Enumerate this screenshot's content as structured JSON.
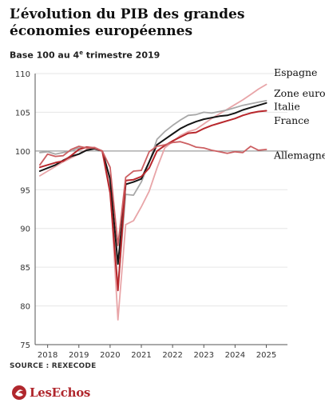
{
  "header": {
    "title": "L’évolution du PIB des grandes économies européennes",
    "subtitle_main": "Base 100 au 4",
    "subtitle_sup": "e",
    "subtitle_rest": " trimestre 2019"
  },
  "footer": {
    "source": "SOURCE : REXECODE",
    "brand": "LesEchos"
  },
  "chart_data": {
    "type": "line",
    "title": "",
    "xlabel": "",
    "ylabel": "",
    "ylim": [
      75,
      110
    ],
    "yticks": [
      75,
      80,
      85,
      90,
      95,
      100,
      105,
      110
    ],
    "xlim": [
      2017.6,
      2025.55
    ],
    "xticks": [
      {
        "label": "2018",
        "value": 2018.0
      },
      {
        "label": "2019",
        "value": 2019.0
      },
      {
        "label": "2020",
        "value": 2020.0
      },
      {
        "label": "2021",
        "value": 2021.0
      },
      {
        "label": "2022",
        "value": 2022.0
      },
      {
        "label": "2023",
        "value": 2023.0
      },
      {
        "label": "2024",
        "value": 2024.0
      },
      {
        "label": "2025",
        "value": 2025.0
      }
    ],
    "baseline": 100,
    "x": [
      2017.75,
      2018.0,
      2018.25,
      2018.5,
      2018.75,
      2019.0,
      2019.25,
      2019.5,
      2019.75,
      2020.0,
      2020.25,
      2020.5,
      2020.75,
      2021.0,
      2021.25,
      2021.5,
      2021.75,
      2022.0,
      2022.25,
      2022.5,
      2022.75,
      2023.0,
      2023.25,
      2023.5,
      2023.75,
      2024.0,
      2024.25,
      2024.5,
      2024.75,
      2025.0
    ],
    "series": [
      {
        "name": "Espagne",
        "color": "#e8a5a8",
        "width": 1.8,
        "values": [
          96.8,
          97.4,
          98.0,
          98.6,
          99.1,
          99.6,
          100.2,
          100.5,
          100.0,
          95.5,
          78.2,
          90.5,
          91.0,
          92.8,
          94.8,
          97.8,
          100.4,
          101.2,
          102.0,
          102.5,
          102.8,
          103.5,
          104.2,
          104.8,
          105.4,
          106.0,
          106.6,
          107.3,
          108.0,
          108.6
        ]
      },
      {
        "name": "Italie",
        "color": "#a8a8a8",
        "width": 1.8,
        "values": [
          99.8,
          99.9,
          99.6,
          99.8,
          100.0,
          100.4,
          100.5,
          100.4,
          100.0,
          95.0,
          82.5,
          94.4,
          94.3,
          96.0,
          98.5,
          101.5,
          102.5,
          103.3,
          104.0,
          104.6,
          104.7,
          105.0,
          104.9,
          105.1,
          105.3,
          105.6,
          105.9,
          106.1,
          106.3,
          106.5
        ]
      },
      {
        "name": "Zone euro",
        "color": "#141414",
        "width": 2.0,
        "values": [
          97.4,
          97.8,
          98.2,
          98.8,
          99.3,
          99.6,
          100.1,
          100.3,
          100.0,
          96.4,
          85.4,
          95.7,
          96.0,
          96.4,
          98.6,
          100.8,
          101.5,
          102.2,
          102.9,
          103.4,
          103.8,
          104.1,
          104.3,
          104.5,
          104.6,
          104.9,
          105.3,
          105.6,
          105.9,
          106.2
        ]
      },
      {
        "name": "France",
        "color": "#b8272c",
        "width": 2.0,
        "values": [
          97.9,
          98.2,
          98.5,
          98.7,
          99.4,
          100.2,
          100.5,
          100.4,
          100.0,
          94.6,
          82.0,
          96.2,
          96.3,
          96.7,
          97.8,
          100.0,
          100.7,
          101.3,
          101.8,
          102.3,
          102.4,
          102.9,
          103.3,
          103.6,
          103.9,
          104.2,
          104.6,
          104.9,
          105.1,
          105.2
        ]
      },
      {
        "name": "Allemagne",
        "color": "#cc5f62",
        "width": 1.8,
        "values": [
          98.2,
          99.6,
          99.3,
          99.4,
          100.2,
          100.6,
          100.4,
          100.4,
          100.0,
          97.9,
          87.8,
          96.6,
          97.4,
          97.5,
          99.9,
          100.6,
          100.8,
          101.1,
          101.2,
          100.9,
          100.5,
          100.4,
          100.1,
          99.9,
          99.7,
          99.9,
          99.8,
          100.6,
          100.1,
          100.2
        ]
      }
    ],
    "labels": [
      {
        "text": "Espagne",
        "series": "Espagne",
        "y": 109.7
      },
      {
        "text": "Zone euro",
        "series": "Zone euro",
        "y": 107.0
      },
      {
        "text": "Italie",
        "series": "Italie",
        "y": 105.3
      },
      {
        "text": "France",
        "series": "France",
        "y": 103.5
      },
      {
        "text": "Allemagne",
        "series": "Allemagne",
        "y": 99.0
      }
    ]
  }
}
